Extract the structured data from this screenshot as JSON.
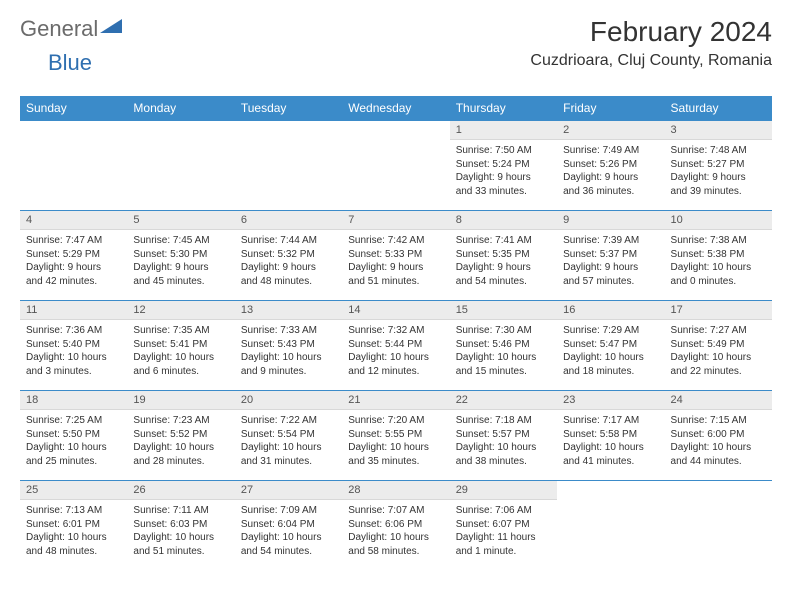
{
  "logo": {
    "text1": "General",
    "text2": "Blue"
  },
  "title": "February 2024",
  "location": "Cuzdrioara, Cluj County, Romania",
  "colors": {
    "header_bg": "#3b8bc9",
    "header_text": "#ffffff",
    "daynum_bg": "#ececec",
    "body_text": "#333333",
    "logo_gray": "#6b6b6b",
    "logo_blue": "#2f6fb0",
    "rule": "#3b8bc9"
  },
  "daynames": [
    "Sunday",
    "Monday",
    "Tuesday",
    "Wednesday",
    "Thursday",
    "Friday",
    "Saturday"
  ],
  "weeks": [
    [
      null,
      null,
      null,
      null,
      {
        "n": "1",
        "sr": "Sunrise: 7:50 AM",
        "ss": "Sunset: 5:24 PM",
        "dl1": "Daylight: 9 hours",
        "dl2": "and 33 minutes."
      },
      {
        "n": "2",
        "sr": "Sunrise: 7:49 AM",
        "ss": "Sunset: 5:26 PM",
        "dl1": "Daylight: 9 hours",
        "dl2": "and 36 minutes."
      },
      {
        "n": "3",
        "sr": "Sunrise: 7:48 AM",
        "ss": "Sunset: 5:27 PM",
        "dl1": "Daylight: 9 hours",
        "dl2": "and 39 minutes."
      }
    ],
    [
      {
        "n": "4",
        "sr": "Sunrise: 7:47 AM",
        "ss": "Sunset: 5:29 PM",
        "dl1": "Daylight: 9 hours",
        "dl2": "and 42 minutes."
      },
      {
        "n": "5",
        "sr": "Sunrise: 7:45 AM",
        "ss": "Sunset: 5:30 PM",
        "dl1": "Daylight: 9 hours",
        "dl2": "and 45 minutes."
      },
      {
        "n": "6",
        "sr": "Sunrise: 7:44 AM",
        "ss": "Sunset: 5:32 PM",
        "dl1": "Daylight: 9 hours",
        "dl2": "and 48 minutes."
      },
      {
        "n": "7",
        "sr": "Sunrise: 7:42 AM",
        "ss": "Sunset: 5:33 PM",
        "dl1": "Daylight: 9 hours",
        "dl2": "and 51 minutes."
      },
      {
        "n": "8",
        "sr": "Sunrise: 7:41 AM",
        "ss": "Sunset: 5:35 PM",
        "dl1": "Daylight: 9 hours",
        "dl2": "and 54 minutes."
      },
      {
        "n": "9",
        "sr": "Sunrise: 7:39 AM",
        "ss": "Sunset: 5:37 PM",
        "dl1": "Daylight: 9 hours",
        "dl2": "and 57 minutes."
      },
      {
        "n": "10",
        "sr": "Sunrise: 7:38 AM",
        "ss": "Sunset: 5:38 PM",
        "dl1": "Daylight: 10 hours",
        "dl2": "and 0 minutes."
      }
    ],
    [
      {
        "n": "11",
        "sr": "Sunrise: 7:36 AM",
        "ss": "Sunset: 5:40 PM",
        "dl1": "Daylight: 10 hours",
        "dl2": "and 3 minutes."
      },
      {
        "n": "12",
        "sr": "Sunrise: 7:35 AM",
        "ss": "Sunset: 5:41 PM",
        "dl1": "Daylight: 10 hours",
        "dl2": "and 6 minutes."
      },
      {
        "n": "13",
        "sr": "Sunrise: 7:33 AM",
        "ss": "Sunset: 5:43 PM",
        "dl1": "Daylight: 10 hours",
        "dl2": "and 9 minutes."
      },
      {
        "n": "14",
        "sr": "Sunrise: 7:32 AM",
        "ss": "Sunset: 5:44 PM",
        "dl1": "Daylight: 10 hours",
        "dl2": "and 12 minutes."
      },
      {
        "n": "15",
        "sr": "Sunrise: 7:30 AM",
        "ss": "Sunset: 5:46 PM",
        "dl1": "Daylight: 10 hours",
        "dl2": "and 15 minutes."
      },
      {
        "n": "16",
        "sr": "Sunrise: 7:29 AM",
        "ss": "Sunset: 5:47 PM",
        "dl1": "Daylight: 10 hours",
        "dl2": "and 18 minutes."
      },
      {
        "n": "17",
        "sr": "Sunrise: 7:27 AM",
        "ss": "Sunset: 5:49 PM",
        "dl1": "Daylight: 10 hours",
        "dl2": "and 22 minutes."
      }
    ],
    [
      {
        "n": "18",
        "sr": "Sunrise: 7:25 AM",
        "ss": "Sunset: 5:50 PM",
        "dl1": "Daylight: 10 hours",
        "dl2": "and 25 minutes."
      },
      {
        "n": "19",
        "sr": "Sunrise: 7:23 AM",
        "ss": "Sunset: 5:52 PM",
        "dl1": "Daylight: 10 hours",
        "dl2": "and 28 minutes."
      },
      {
        "n": "20",
        "sr": "Sunrise: 7:22 AM",
        "ss": "Sunset: 5:54 PM",
        "dl1": "Daylight: 10 hours",
        "dl2": "and 31 minutes."
      },
      {
        "n": "21",
        "sr": "Sunrise: 7:20 AM",
        "ss": "Sunset: 5:55 PM",
        "dl1": "Daylight: 10 hours",
        "dl2": "and 35 minutes."
      },
      {
        "n": "22",
        "sr": "Sunrise: 7:18 AM",
        "ss": "Sunset: 5:57 PM",
        "dl1": "Daylight: 10 hours",
        "dl2": "and 38 minutes."
      },
      {
        "n": "23",
        "sr": "Sunrise: 7:17 AM",
        "ss": "Sunset: 5:58 PM",
        "dl1": "Daylight: 10 hours",
        "dl2": "and 41 minutes."
      },
      {
        "n": "24",
        "sr": "Sunrise: 7:15 AM",
        "ss": "Sunset: 6:00 PM",
        "dl1": "Daylight: 10 hours",
        "dl2": "and 44 minutes."
      }
    ],
    [
      {
        "n": "25",
        "sr": "Sunrise: 7:13 AM",
        "ss": "Sunset: 6:01 PM",
        "dl1": "Daylight: 10 hours",
        "dl2": "and 48 minutes."
      },
      {
        "n": "26",
        "sr": "Sunrise: 7:11 AM",
        "ss": "Sunset: 6:03 PM",
        "dl1": "Daylight: 10 hours",
        "dl2": "and 51 minutes."
      },
      {
        "n": "27",
        "sr": "Sunrise: 7:09 AM",
        "ss": "Sunset: 6:04 PM",
        "dl1": "Daylight: 10 hours",
        "dl2": "and 54 minutes."
      },
      {
        "n": "28",
        "sr": "Sunrise: 7:07 AM",
        "ss": "Sunset: 6:06 PM",
        "dl1": "Daylight: 10 hours",
        "dl2": "and 58 minutes."
      },
      {
        "n": "29",
        "sr": "Sunrise: 7:06 AM",
        "ss": "Sunset: 6:07 PM",
        "dl1": "Daylight: 11 hours",
        "dl2": "and 1 minute."
      },
      null,
      null
    ]
  ]
}
